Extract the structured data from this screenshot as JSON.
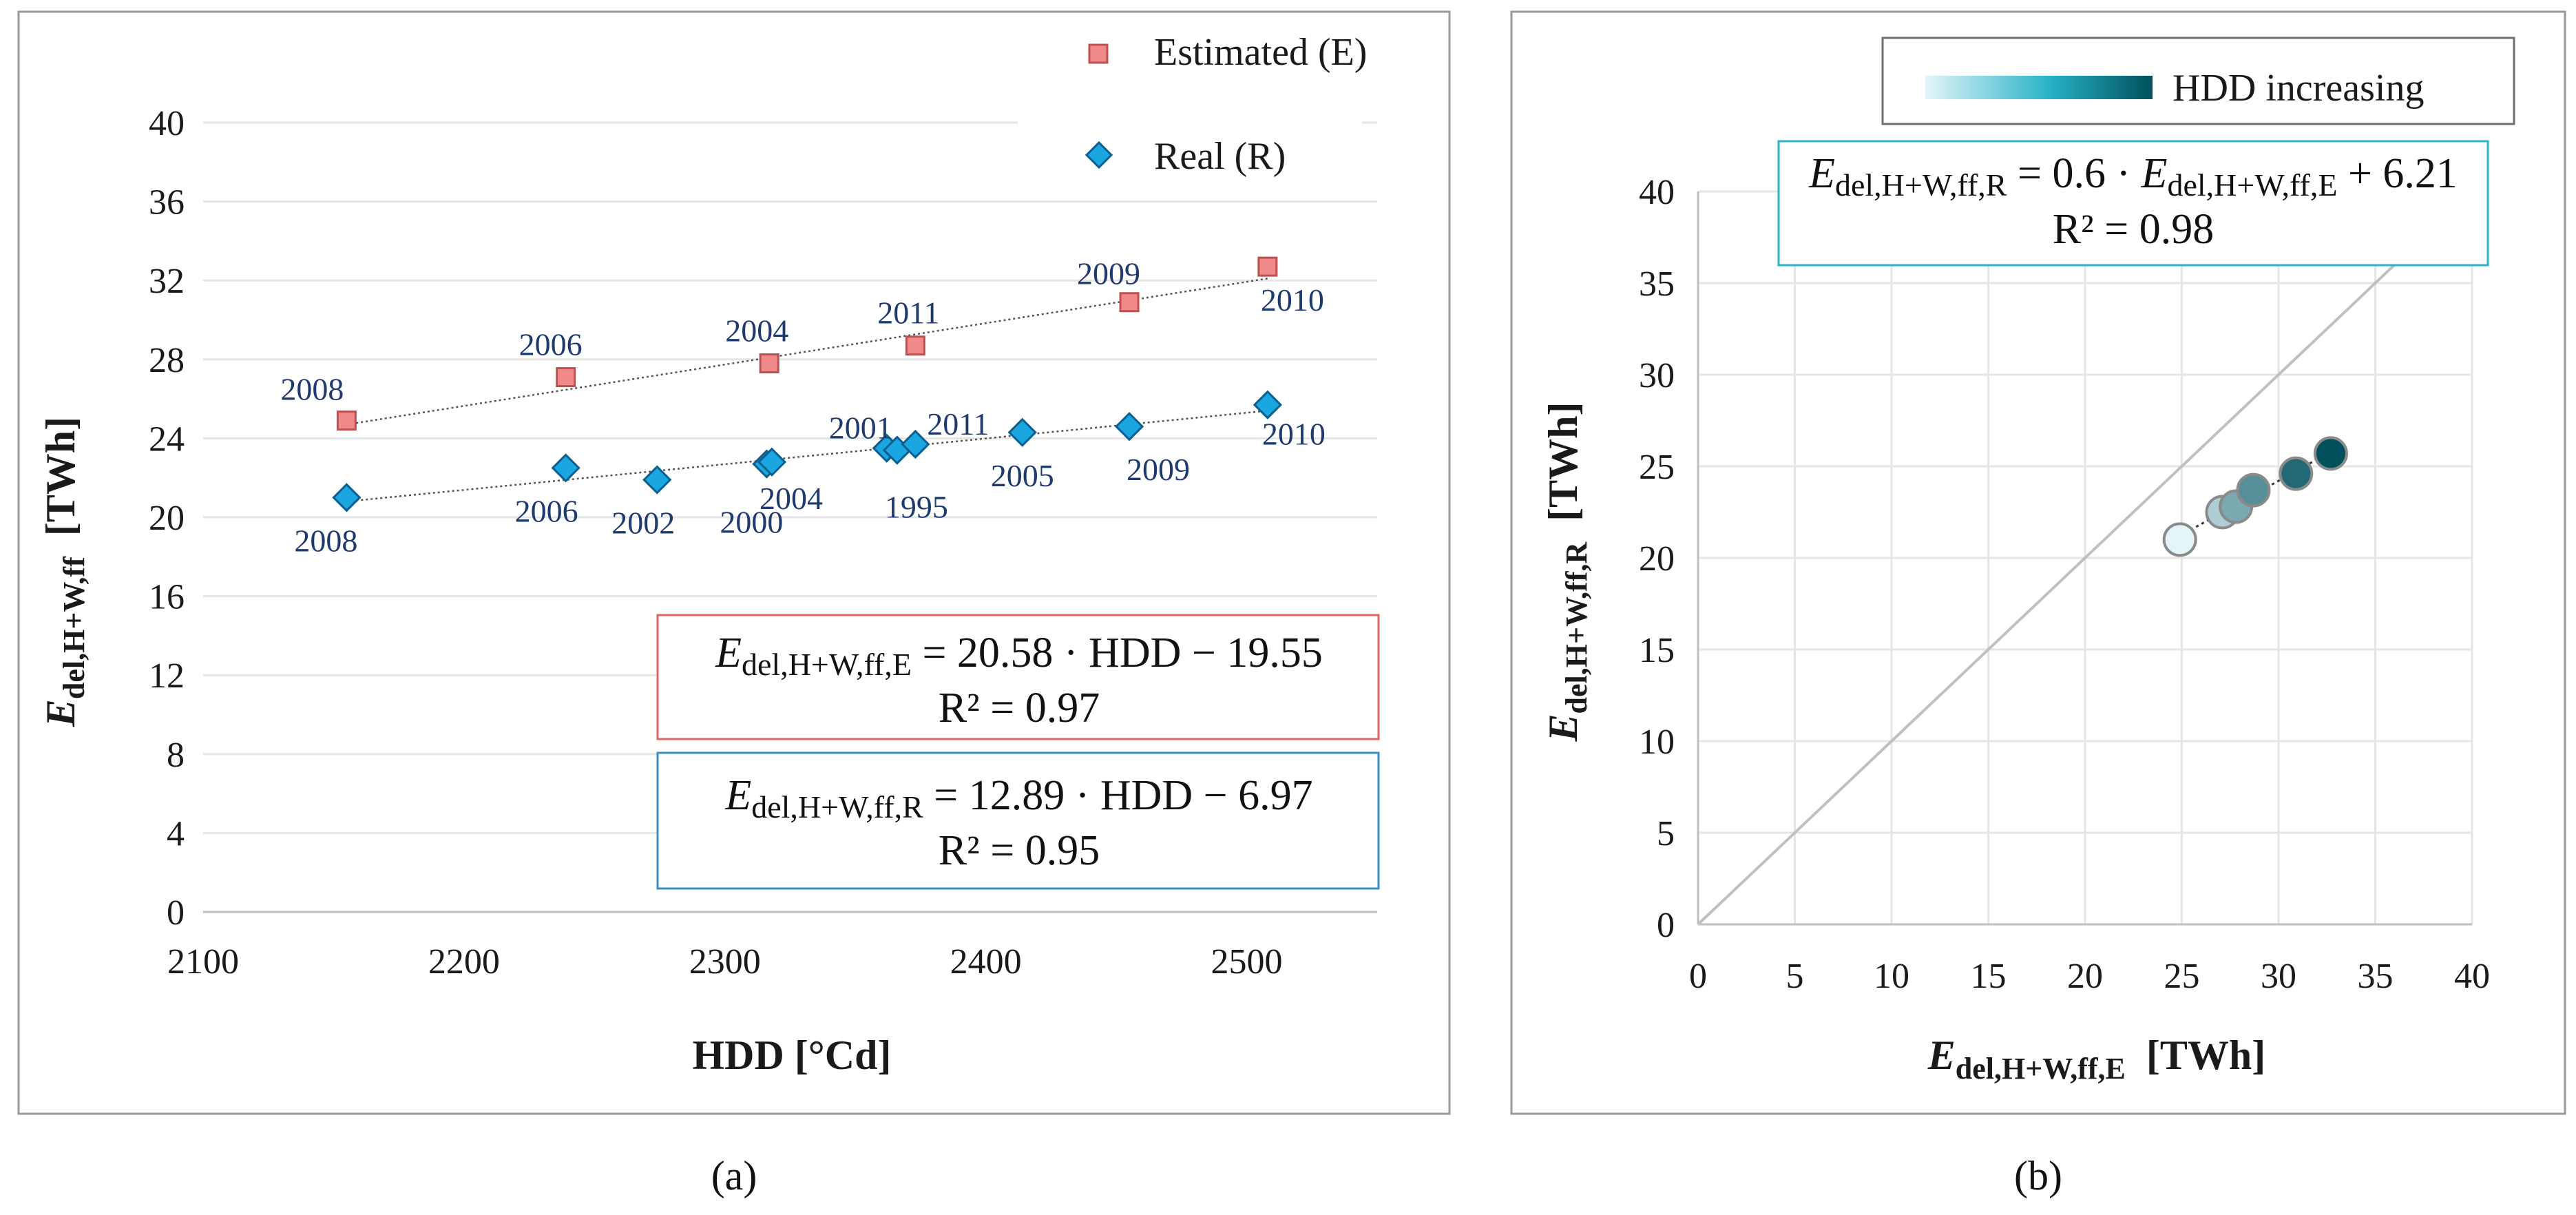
{
  "chart_data": [
    {
      "panel_label": "(a)",
      "type": "scatter",
      "xlabel": "HDD [°Cd]",
      "ylabel": "E del,H+W,ff [TWh]",
      "ylabel_main": "E",
      "ylabel_sub": "del,H+W,ff",
      "ylabel_unit": "[TWh]",
      "xlim": [
        2100,
        2550
      ],
      "ylim": [
        0,
        40
      ],
      "x_ticks": [
        2100,
        2200,
        2300,
        2400,
        2500
      ],
      "y_ticks": [
        0,
        4,
        8,
        12,
        16,
        20,
        24,
        28,
        32,
        36,
        40
      ],
      "grid": true,
      "legend": "top-right",
      "series": [
        {
          "name": "Estimated (E)",
          "marker": "square",
          "color": "#f08a8a",
          "edge": "#c0504d",
          "points": [
            {
              "x": 2155,
              "y": 24.9,
              "label": "2008"
            },
            {
              "x": 2239,
              "y": 27.1,
              "label": "2006"
            },
            {
              "x": 2317,
              "y": 27.8,
              "label": "2004"
            },
            {
              "x": 2373,
              "y": 28.7,
              "label": "2011"
            },
            {
              "x": 2455,
              "y": 30.9,
              "label": "2009"
            },
            {
              "x": 2508,
              "y": 32.7,
              "label": "2010"
            }
          ],
          "trend": {
            "x": [
              2155,
              2508
            ],
            "y": [
              24.7,
              32.1
            ]
          },
          "equation": {
            "main": "E",
            "sub": "del,H+W,ff,E",
            "rhs": " = 20.58 · HDD − 19.55",
            "r2": "R² = 0.97"
          }
        },
        {
          "name": "Real (R)",
          "marker": "diamond",
          "color": "#1aa6e0",
          "edge": "#0b5f8f",
          "points": [
            {
              "x": 2155,
              "y": 21.0,
              "label": "2008"
            },
            {
              "x": 2239,
              "y": 22.5,
              "label": "2006"
            },
            {
              "x": 2274,
              "y": 21.9,
              "label": "2002"
            },
            {
              "x": 2316,
              "y": 22.7,
              "label": "2000"
            },
            {
              "x": 2318,
              "y": 22.8,
              "label": "2004"
            },
            {
              "x": 2362,
              "y": 23.5,
              "label": "2001"
            },
            {
              "x": 2366,
              "y": 23.4,
              "label": "1995"
            },
            {
              "x": 2373,
              "y": 23.7,
              "label": "2011"
            },
            {
              "x": 2414,
              "y": 24.3,
              "label": "2005"
            },
            {
              "x": 2455,
              "y": 24.6,
              "label": "2009"
            },
            {
              "x": 2508,
              "y": 25.7,
              "label": "2010"
            }
          ],
          "trend": {
            "x": [
              2155,
              2508
            ],
            "y": [
              20.8,
              25.4
            ]
          },
          "equation": {
            "main": "E",
            "sub": "del,H+W,ff,R",
            "rhs": " = 12.89 · HDD − 6.97",
            "r2": "R² = 0.95"
          }
        }
      ]
    },
    {
      "panel_label": "(b)",
      "type": "scatter",
      "xlabel": "E del,H+W,ff,E [TWh]",
      "xlabel_main": "E",
      "xlabel_sub": "del,H+W,ff,E",
      "xlabel_unit": "[TWh]",
      "ylabel": "E del,H+W,ff,R [TWh]",
      "ylabel_main": "E",
      "ylabel_sub": "del,H+W,ff,R",
      "ylabel_unit": "[TWh]",
      "xlim": [
        0,
        40
      ],
      "ylim": [
        0,
        40
      ],
      "x_ticks": [
        0,
        5,
        10,
        15,
        20,
        25,
        30,
        35,
        40
      ],
      "y_ticks": [
        0,
        5,
        10,
        15,
        20,
        25,
        30,
        35,
        40
      ],
      "grid": true,
      "legend": "top-right",
      "legend_label": "HDD increasing",
      "color_light": "#e4f5fa",
      "color_dark": "#00505c",
      "identity_line": [
        0,
        40
      ],
      "points": [
        {
          "x": 24.9,
          "y": 21.0,
          "hdd": 2155
        },
        {
          "x": 27.1,
          "y": 22.5,
          "hdd": 2239
        },
        {
          "x": 27.8,
          "y": 22.8,
          "hdd": 2317
        },
        {
          "x": 28.7,
          "y": 23.7,
          "hdd": 2373
        },
        {
          "x": 30.9,
          "y": 24.6,
          "hdd": 2455
        },
        {
          "x": 32.7,
          "y": 25.7,
          "hdd": 2508
        }
      ],
      "trend": {
        "x": [
          24.9,
          32.7
        ],
        "y": [
          21.2,
          25.8
        ]
      },
      "equation": {
        "main": "E",
        "sub": "del,H+W,ff,R",
        "rhs": " = 0.6 · ",
        "main2": "E",
        "sub2": "del,H+W,ff,E",
        "rhs2": " + 6.21",
        "r2": "R² = 0.98"
      }
    }
  ],
  "colors": {
    "estimated_edge": "#c0504d",
    "real_edge": "#3a8fc0",
    "eq_b_border": "#2ab3c9",
    "frame": "#9a9a9a",
    "grid": "#e6e6e6",
    "year_label": "#1f3a6e"
  }
}
